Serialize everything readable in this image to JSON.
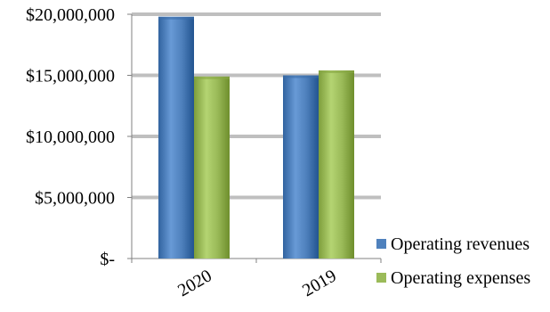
{
  "chart_data": {
    "type": "bar",
    "categories": [
      "2020",
      "2019"
    ],
    "series": [
      {
        "name": "Operating revenues",
        "values": [
          19800000,
          15000000
        ],
        "color": "#4f81bd"
      },
      {
        "name": "Operating expenses",
        "values": [
          14900000,
          15400000
        ],
        "color": "#9bbb59"
      }
    ],
    "y_ticks": [
      {
        "value": 0,
        "label": "$-"
      },
      {
        "value": 5000000,
        "label": "$5,000,000"
      },
      {
        "value": 10000000,
        "label": "$10,000,000"
      },
      {
        "value": 15000000,
        "label": "$15,000,000"
      },
      {
        "value": 20000000,
        "label": "$20,000,000"
      }
    ],
    "ylim": [
      0,
      20000000
    ],
    "title": "",
    "xlabel": "",
    "ylabel": "",
    "grid": true,
    "legend_position": "bottom-right",
    "gridline_color": "#bfbfbf",
    "axis_color": "#808080"
  }
}
